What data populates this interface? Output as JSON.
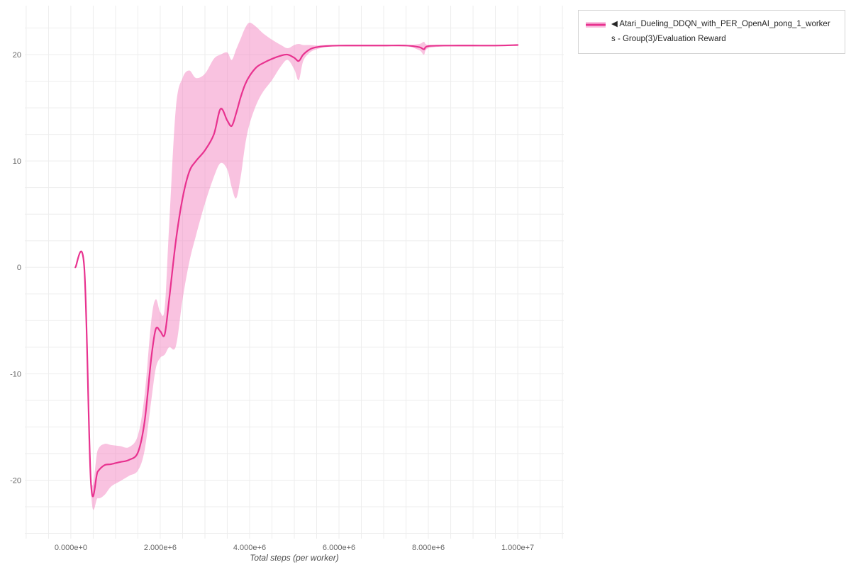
{
  "legend": {
    "line1": "◀ Atari_Dueling_DDQN_with_PER_OpenAI_pong_1_worker",
    "line2": "s - Group(3)/Evaluation Reward"
  },
  "chart_data": {
    "type": "line",
    "title": "",
    "xlabel": "Total steps (per worker)",
    "ylabel": "",
    "legend_position": "top-right",
    "grid": true,
    "line_color": "#e8328f",
    "band_color": "#f486c2",
    "grid_color": "#ededed",
    "tick_color": "#666666",
    "xlim": [
      -1030000,
      11030000
    ],
    "ylim": [
      -25.5,
      24.6
    ],
    "x_ticks": [
      {
        "value": 0,
        "label": "0.000e+0"
      },
      {
        "value": 2000000,
        "label": "2.000e+6"
      },
      {
        "value": 4000000,
        "label": "4.000e+6"
      },
      {
        "value": 6000000,
        "label": "6.000e+6"
      },
      {
        "value": 8000000,
        "label": "8.000e+6"
      },
      {
        "value": 10000000,
        "label": "1.000e+7"
      }
    ],
    "y_ticks": [
      {
        "value": -20,
        "label": "-20"
      },
      {
        "value": -10,
        "label": "-10"
      },
      {
        "value": 0,
        "label": "0"
      },
      {
        "value": 10,
        "label": "10"
      },
      {
        "value": 20,
        "label": "20"
      }
    ],
    "x": [
      100000,
      300000,
      450000,
      600000,
      750000,
      900000,
      1100000,
      1300000,
      1500000,
      1650000,
      1800000,
      1900000,
      2000000,
      2100000,
      2200000,
      2350000,
      2500000,
      2650000,
      2800000,
      3000000,
      3200000,
      3350000,
      3500000,
      3600000,
      3700000,
      3800000,
      3900000,
      4000000,
      4150000,
      4300000,
      4500000,
      4700000,
      4850000,
      5000000,
      5100000,
      5200000,
      5350000,
      5500000,
      5700000,
      6000000,
      6500000,
      7000000,
      7500000,
      7800000,
      7900000,
      8000000,
      8500000,
      9000000,
      9500000,
      10000000
    ],
    "series": [
      {
        "name": "Atari_Dueling_DDQN_with_PER_OpenAI_pong_1_workers - Group(3)/Evaluation Reward (mean)",
        "role": "mean",
        "values": [
          0.0,
          0.0,
          -20.3,
          -19.2,
          -18.6,
          -18.5,
          -18.3,
          -18.1,
          -17.4,
          -14.5,
          -8.5,
          -5.8,
          -6.0,
          -6.3,
          -3.0,
          2.5,
          6.5,
          9.0,
          10.0,
          11.0,
          12.5,
          14.9,
          13.8,
          13.3,
          14.5,
          16.0,
          17.2,
          18.0,
          18.8,
          19.2,
          19.6,
          19.9,
          20.0,
          19.7,
          19.4,
          20.0,
          20.5,
          20.7,
          20.8,
          20.85,
          20.85,
          20.85,
          20.85,
          20.7,
          20.5,
          20.8,
          20.85,
          20.85,
          20.85,
          20.9
        ]
      },
      {
        "name": "band upper",
        "role": "band_upper",
        "values": [
          0.0,
          0.0,
          -19.6,
          -17.2,
          -16.6,
          -16.7,
          -16.8,
          -16.9,
          -15.8,
          -12.0,
          -5.0,
          -3.0,
          -4.2,
          -3.8,
          4.0,
          15.0,
          17.8,
          18.5,
          17.8,
          18.2,
          19.6,
          20.0,
          20.2,
          19.5,
          20.5,
          21.5,
          22.5,
          23.0,
          22.6,
          22.0,
          21.4,
          20.9,
          20.6,
          20.9,
          21.0,
          20.9,
          20.9,
          20.85,
          20.9,
          20.9,
          20.9,
          20.9,
          20.9,
          21.0,
          21.2,
          20.9,
          20.9,
          20.9,
          20.9,
          20.9
        ]
      },
      {
        "name": "band lower",
        "role": "band_lower",
        "values": [
          0.0,
          0.0,
          -21.0,
          -21.7,
          -21.4,
          -20.6,
          -20.1,
          -19.6,
          -19.1,
          -17.2,
          -12.5,
          -9.5,
          -8.5,
          -8.2,
          -7.5,
          -7.4,
          -3.0,
          0.5,
          3.0,
          6.0,
          8.5,
          9.8,
          9.2,
          7.5,
          6.5,
          8.5,
          11.5,
          13.5,
          15.3,
          16.5,
          17.6,
          18.9,
          19.5,
          18.6,
          17.6,
          19.4,
          20.2,
          20.5,
          20.7,
          20.8,
          20.8,
          20.8,
          20.8,
          20.4,
          20.0,
          20.6,
          20.8,
          20.8,
          20.8,
          20.85
        ]
      }
    ]
  }
}
